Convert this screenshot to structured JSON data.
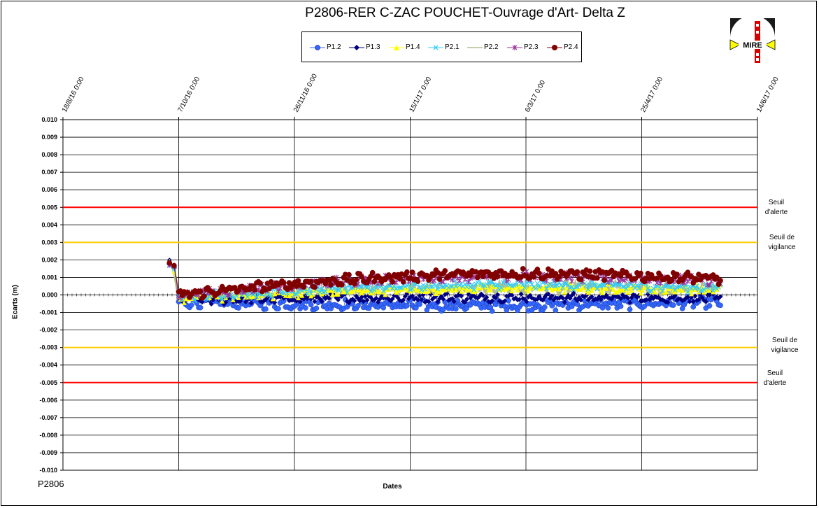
{
  "chart_data": {
    "type": "scatter",
    "title": "P2806-RER  C-ZAC  POUCHET-Ouvrage  d'Art- Delta Z",
    "xlabel": "Dates",
    "ylabel": "Ecarts (m)",
    "ylim": [
      -0.01,
      0.01
    ],
    "y_ticks": [
      "0.010",
      "0.009",
      "0.008",
      "0.007",
      "0.006",
      "0.005",
      "0.004",
      "0.003",
      "0.002",
      "0.001",
      "0.000",
      "-0.001",
      "-0.002",
      "-0.003",
      "-0.004",
      "-0.005",
      "-0.006",
      "-0.007",
      "-0.008",
      "-0.009",
      "-0.010"
    ],
    "x_ticks": [
      "18/8/16 0:00",
      "7/10/16 0:00",
      "26/11/16 0:00",
      "15/1/17 0:00",
      "6/3/17 0:00",
      "25/4/17 0:00",
      "14/6/17 0:00"
    ],
    "x_range": [
      "2016-08-18",
      "2017-06-14"
    ],
    "grid": true,
    "legend_position": "top",
    "series": [
      {
        "name": "P1.2",
        "color": "#3366ff",
        "marker": "circle",
        "start": -0.0004,
        "end": -0.0004,
        "bump": -0.0002,
        "noise": 0.00025,
        "amp": 0.0002
      },
      {
        "name": "P1.3",
        "color": "#000080",
        "marker": "diamond",
        "start": -0.0003,
        "end": -0.0002,
        "bump": 0.0001,
        "noise": 0.0002,
        "amp": 0.0002
      },
      {
        "name": "P1.4",
        "color": "#ffff00",
        "marker": "triangle",
        "start": -0.0002,
        "end": 0.0003,
        "bump": 0.0003,
        "noise": 0.0002,
        "amp": 0.0002
      },
      {
        "name": "P2.1",
        "color": "#33ccff",
        "marker": "x",
        "start": -0.0001,
        "end": 0.0004,
        "bump": 0.0004,
        "noise": 0.0002,
        "amp": 0.0002
      },
      {
        "name": "P2.2",
        "color": "#b0bf90",
        "marker": "none",
        "start": -0.0002,
        "end": 0.0003,
        "bump": 0.0003,
        "noise": 0.0003,
        "amp": 0.0002
      },
      {
        "name": "P2.3",
        "color": "#993399",
        "marker": "star",
        "start": 0.0,
        "end": 0.0008,
        "bump": 0.0006,
        "noise": 0.0002,
        "amp": 0.0002
      },
      {
        "name": "P2.4",
        "color": "#800000",
        "marker": "circle",
        "start": 0.0,
        "end": 0.0009,
        "bump": 0.0007,
        "noise": 0.00025,
        "amp": 0.0002
      }
    ],
    "data_start_date": "2016-10-07",
    "data_end_date": "2017-05-29",
    "initial_value": 0.0018,
    "thresholds": [
      {
        "value": 0.005,
        "color": "#ff0000",
        "label_line1": "Seuil",
        "label_line2": "d'alerte"
      },
      {
        "value": 0.003,
        "color": "#ffcc00",
        "label_line1": "Seuil de",
        "label_line2": "vigilance"
      },
      {
        "value": -0.003,
        "color": "#ffcc00",
        "label_line1": "Seuil de",
        "label_line2": "vigilance"
      },
      {
        "value": -0.005,
        "color": "#ff0000",
        "label_line1": "Seuil",
        "label_line2": "d'alerte"
      }
    ]
  },
  "footnote": "P2806",
  "logo_text": "MIRE"
}
